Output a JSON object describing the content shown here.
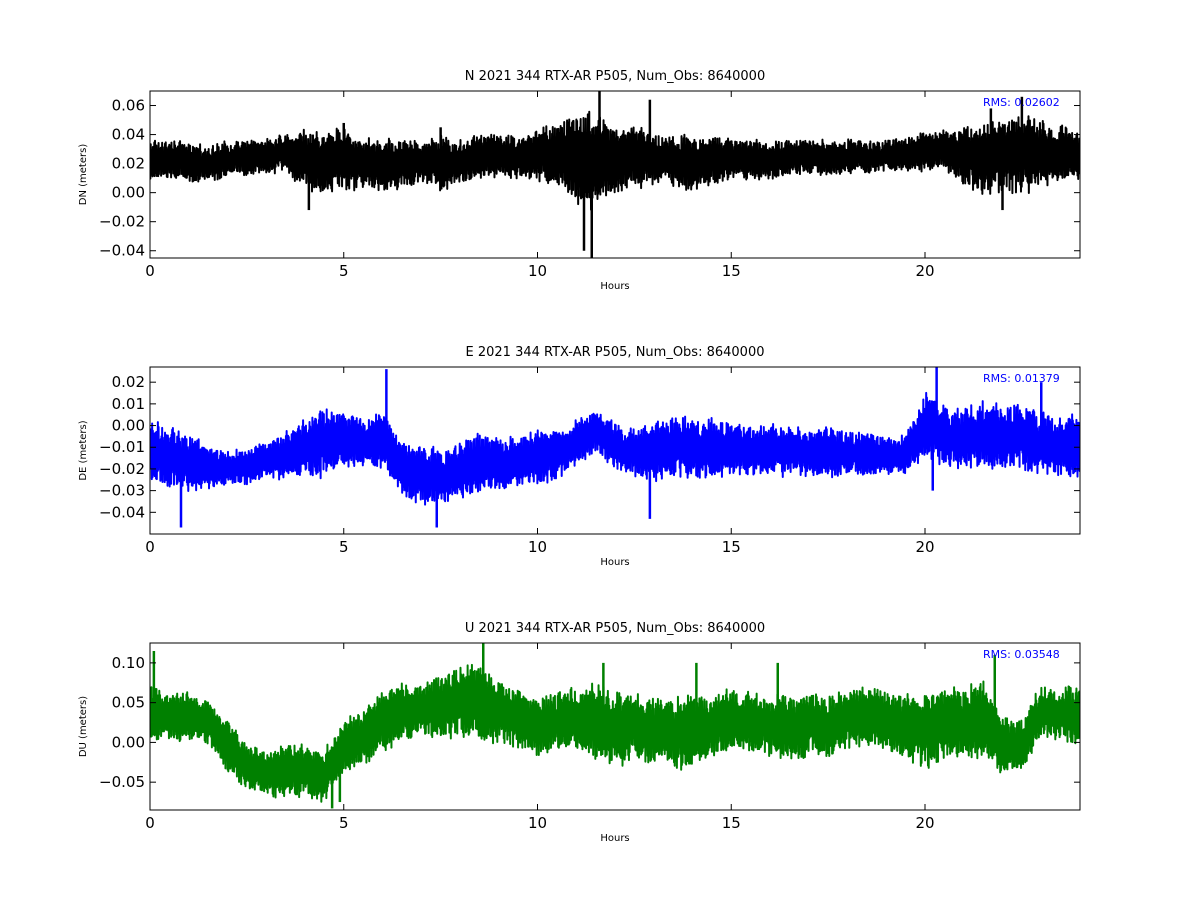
{
  "chart_data": [
    {
      "type": "line",
      "title": "N 2021 344 RTX-AR  P505, Num_Obs: 8640000",
      "xlabel": "Hours",
      "ylabel": "DN (meters)",
      "xlim": [
        0,
        24
      ],
      "ylim": [
        -0.045,
        0.07
      ],
      "xticks": [
        0,
        5,
        10,
        15,
        20
      ],
      "yticks": [
        -0.04,
        -0.02,
        0.0,
        0.02,
        0.04,
        0.06
      ],
      "ytick_labels": [
        "−0.04",
        "−0.02",
        "0.00",
        "0.02",
        "0.04",
        "0.06"
      ],
      "grid": false,
      "color": "#000000",
      "annotation": "RMS:  0.02602",
      "annotation_color": "#0000ff",
      "envelope": {
        "x": [
          0,
          0.5,
          1,
          1.5,
          2,
          2.5,
          3,
          3.5,
          4,
          4.5,
          5,
          5.5,
          6,
          6.5,
          7,
          7.5,
          8,
          8.5,
          9,
          9.5,
          10,
          10.5,
          11,
          11.5,
          12,
          12.5,
          13,
          13.5,
          14,
          14.5,
          15,
          15.5,
          16,
          16.5,
          17,
          17.5,
          18,
          18.5,
          19,
          19.5,
          20,
          20.5,
          21,
          21.5,
          22,
          22.5,
          23,
          23.5,
          24
        ],
        "center": [
          0.022,
          0.023,
          0.021,
          0.02,
          0.022,
          0.024,
          0.025,
          0.028,
          0.022,
          0.02,
          0.024,
          0.02,
          0.018,
          0.02,
          0.022,
          0.02,
          0.021,
          0.025,
          0.026,
          0.024,
          0.025,
          0.027,
          0.024,
          0.023,
          0.022,
          0.024,
          0.024,
          0.022,
          0.02,
          0.022,
          0.024,
          0.023,
          0.022,
          0.024,
          0.025,
          0.024,
          0.025,
          0.024,
          0.026,
          0.027,
          0.028,
          0.03,
          0.025,
          0.023,
          0.026,
          0.028,
          0.027,
          0.026,
          0.025
        ],
        "amplitude": [
          0.014,
          0.012,
          0.012,
          0.011,
          0.012,
          0.012,
          0.011,
          0.012,
          0.02,
          0.02,
          0.02,
          0.016,
          0.018,
          0.016,
          0.014,
          0.018,
          0.014,
          0.014,
          0.014,
          0.013,
          0.017,
          0.022,
          0.03,
          0.032,
          0.022,
          0.02,
          0.016,
          0.016,
          0.018,
          0.015,
          0.014,
          0.013,
          0.012,
          0.012,
          0.011,
          0.011,
          0.011,
          0.011,
          0.01,
          0.011,
          0.012,
          0.013,
          0.018,
          0.022,
          0.024,
          0.026,
          0.022,
          0.018,
          0.016
        ]
      },
      "spikes": [
        [
          4.1,
          -0.012
        ],
        [
          4.2,
          0.04
        ],
        [
          5.0,
          0.048
        ],
        [
          7.5,
          0.045
        ],
        [
          11.2,
          -0.04
        ],
        [
          11.4,
          -0.045
        ],
        [
          11.6,
          0.07
        ],
        [
          12.9,
          0.064
        ],
        [
          21.7,
          0.058
        ],
        [
          22.5,
          0.066
        ],
        [
          22.0,
          -0.012
        ]
      ]
    },
    {
      "type": "line",
      "title": "E 2021 344 RTX-AR  P505, Num_Obs: 8640000",
      "xlabel": "Hours",
      "ylabel": "DE (meters)",
      "xlim": [
        0,
        24
      ],
      "ylim": [
        -0.05,
        0.027
      ],
      "xticks": [
        0,
        5,
        10,
        15,
        20
      ],
      "yticks": [
        -0.04,
        -0.03,
        -0.02,
        -0.01,
        0.0,
        0.01,
        0.02
      ],
      "ytick_labels": [
        "−0.04",
        "−0.03",
        "−0.02",
        "−0.01",
        "0.00",
        "0.01",
        "0.02"
      ],
      "grid": false,
      "color": "#0000ff",
      "annotation": "RMS:  0.01379",
      "annotation_color": "#0000ff",
      "envelope": {
        "x": [
          0,
          0.5,
          1,
          1.5,
          2,
          2.5,
          3,
          3.5,
          4,
          4.5,
          5,
          5.5,
          6,
          6.5,
          7,
          7.5,
          8,
          8.5,
          9,
          9.5,
          10,
          10.5,
          11,
          11.5,
          12,
          12.5,
          13,
          13.5,
          14,
          14.5,
          15,
          15.5,
          16,
          16.5,
          17,
          17.5,
          18,
          18.5,
          19,
          19.5,
          20,
          20.5,
          21,
          21.5,
          22,
          22.5,
          23,
          23.5,
          24
        ],
        "center": [
          -0.012,
          -0.015,
          -0.017,
          -0.019,
          -0.02,
          -0.019,
          -0.016,
          -0.014,
          -0.01,
          -0.008,
          -0.006,
          -0.008,
          -0.006,
          -0.02,
          -0.022,
          -0.024,
          -0.021,
          -0.016,
          -0.018,
          -0.016,
          -0.015,
          -0.013,
          -0.008,
          -0.002,
          -0.01,
          -0.012,
          -0.012,
          -0.01,
          -0.01,
          -0.01,
          -0.011,
          -0.012,
          -0.011,
          -0.012,
          -0.012,
          -0.012,
          -0.013,
          -0.013,
          -0.014,
          -0.013,
          0.0,
          -0.004,
          -0.005,
          -0.004,
          -0.006,
          -0.004,
          -0.008,
          -0.01,
          -0.01
        ],
        "amplitude": [
          0.014,
          0.013,
          0.012,
          0.009,
          0.007,
          0.008,
          0.008,
          0.01,
          0.012,
          0.015,
          0.012,
          0.01,
          0.012,
          0.012,
          0.013,
          0.012,
          0.012,
          0.013,
          0.011,
          0.011,
          0.012,
          0.011,
          0.01,
          0.009,
          0.01,
          0.01,
          0.013,
          0.014,
          0.013,
          0.013,
          0.012,
          0.011,
          0.011,
          0.011,
          0.01,
          0.011,
          0.009,
          0.009,
          0.008,
          0.008,
          0.014,
          0.014,
          0.013,
          0.014,
          0.014,
          0.014,
          0.013,
          0.013,
          0.014
        ]
      },
      "spikes": [
        [
          0.8,
          -0.047
        ],
        [
          6.1,
          0.026
        ],
        [
          7.4,
          -0.047
        ],
        [
          12.9,
          -0.043
        ],
        [
          20.3,
          0.027
        ],
        [
          20.2,
          -0.03
        ],
        [
          23.0,
          0.02
        ]
      ]
    },
    {
      "type": "line",
      "title": "U 2021 344 RTX-AR  P505, Num_Obs: 8640000",
      "xlabel": "Hours",
      "ylabel": "DU (meters)",
      "xlim": [
        0,
        24
      ],
      "ylim": [
        -0.085,
        0.125
      ],
      "xticks": [
        0,
        5,
        10,
        15,
        20
      ],
      "yticks": [
        -0.05,
        0.0,
        0.05,
        0.1
      ],
      "ytick_labels": [
        "−0.05",
        "0.00",
        "0.05",
        "0.10"
      ],
      "grid": false,
      "color": "#008000",
      "annotation": "RMS:  0.03548",
      "annotation_color": "#0000ff",
      "envelope": {
        "x": [
          0,
          0.5,
          1,
          1.5,
          2,
          2.5,
          3,
          3.5,
          4,
          4.5,
          5,
          5.5,
          6,
          6.5,
          7,
          7.5,
          8,
          8.5,
          9,
          9.5,
          10,
          10.5,
          11,
          11.5,
          12,
          12.5,
          13,
          13.5,
          14,
          14.5,
          15,
          15.5,
          16,
          16.5,
          17,
          17.5,
          18,
          18.5,
          19,
          19.5,
          20,
          20.5,
          21,
          21.5,
          22,
          22.5,
          23,
          23.5,
          24
        ],
        "center": [
          0.035,
          0.03,
          0.035,
          0.025,
          -0.005,
          -0.03,
          -0.04,
          -0.035,
          -0.035,
          -0.045,
          -0.005,
          0.005,
          0.025,
          0.04,
          0.04,
          0.045,
          0.055,
          0.045,
          0.04,
          0.03,
          0.02,
          0.025,
          0.03,
          0.025,
          0.015,
          0.02,
          0.015,
          0.01,
          0.015,
          0.02,
          0.03,
          0.025,
          0.02,
          0.02,
          0.025,
          0.02,
          0.03,
          0.035,
          0.025,
          0.02,
          0.015,
          0.025,
          0.025,
          0.03,
          0.0,
          -0.005,
          0.04,
          0.035,
          0.035
        ],
        "amplitude": [
          0.035,
          0.03,
          0.028,
          0.026,
          0.03,
          0.028,
          0.028,
          0.03,
          0.03,
          0.032,
          0.03,
          0.032,
          0.035,
          0.035,
          0.032,
          0.035,
          0.045,
          0.045,
          0.04,
          0.035,
          0.035,
          0.035,
          0.035,
          0.045,
          0.045,
          0.04,
          0.04,
          0.04,
          0.045,
          0.035,
          0.035,
          0.035,
          0.035,
          0.04,
          0.04,
          0.035,
          0.035,
          0.035,
          0.035,
          0.04,
          0.045,
          0.045,
          0.04,
          0.045,
          0.035,
          0.03,
          0.03,
          0.03,
          0.035
        ]
      },
      "spikes": [
        [
          0.1,
          0.115
        ],
        [
          4.7,
          -0.083
        ],
        [
          8.6,
          0.125
        ],
        [
          11.7,
          0.1
        ],
        [
          14.1,
          0.1
        ],
        [
          16.2,
          0.1
        ],
        [
          21.8,
          0.11
        ],
        [
          4.9,
          -0.075
        ]
      ]
    }
  ]
}
